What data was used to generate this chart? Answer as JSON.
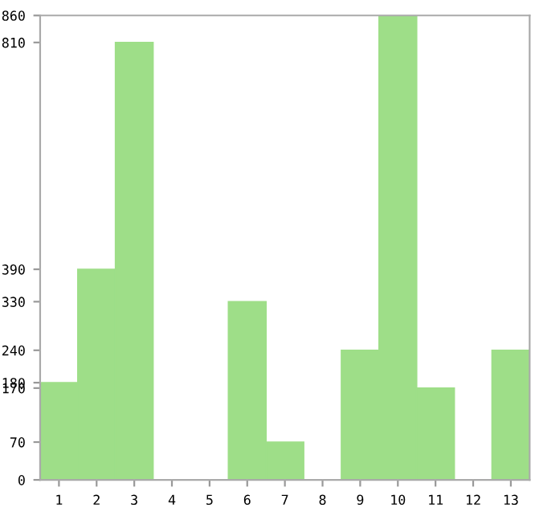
{
  "chart_data": {
    "type": "bar",
    "categories": [
      "1",
      "2",
      "3",
      "4",
      "5",
      "6",
      "7",
      "8",
      "9",
      "10",
      "11",
      "12",
      "13"
    ],
    "values": [
      180,
      390,
      810,
      0,
      0,
      330,
      70,
      0,
      240,
      860,
      170,
      0,
      240
    ],
    "color": "#9ede88",
    "ylim": [
      0,
      860
    ],
    "yticks": [
      0,
      70,
      170,
      180,
      240,
      330,
      390,
      810,
      860
    ],
    "grid": false
  }
}
